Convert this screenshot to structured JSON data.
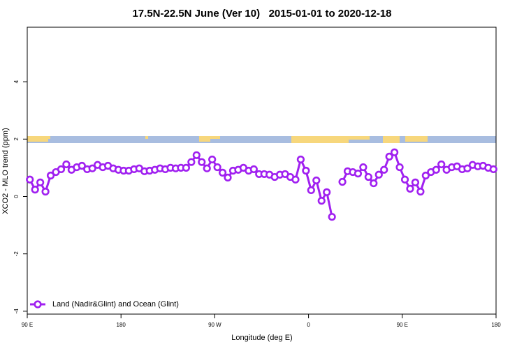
{
  "chart_data": {
    "type": "line",
    "title": "17.5N-22.5N June (Ver 10)   2015-01-01 to 2020-12-18",
    "xlabel": "Longitude (deg E)",
    "ylabel": "XCO2 - MLO trend (ppm)",
    "xlim": [
      90,
      540
    ],
    "ylim": [
      -4.1,
      5.9
    ],
    "xticks": [
      {
        "value": 90,
        "label": "90 E"
      },
      180,
      {
        "value": 270,
        "label": "90 W"
      },
      {
        "value": 360,
        "label": "0"
      },
      {
        "value": 450,
        "label": "90 E"
      },
      {
        "value": 540,
        "label": "180"
      }
    ],
    "yticks": [
      -4,
      -2,
      0,
      2,
      4
    ],
    "legend": "bottom-left",
    "x": [
      92.5,
      97.5,
      102.5,
      107.5,
      112.5,
      117.5,
      122.5,
      127.5,
      132.5,
      137.5,
      142.5,
      147.5,
      152.5,
      157.5,
      162.5,
      167.5,
      172.5,
      177.5,
      182.5,
      187.5,
      192.5,
      197.5,
      202.5,
      207.5,
      212.5,
      217.5,
      222.5,
      227.5,
      232.5,
      237.5,
      242.5,
      247.5,
      252.5,
      257.5,
      262.5,
      267.5,
      272.5,
      277.5,
      282.5,
      287.5,
      292.5,
      297.5,
      302.5,
      307.5,
      312.5,
      317.5,
      322.5,
      327.5,
      332.5,
      337.5,
      342.5,
      347.5,
      352.5,
      357.5,
      362.5,
      367.5,
      372.5,
      377.5,
      382.5,
      387.5,
      392.5,
      397.5,
      402.5,
      407.5,
      412.5,
      417.5,
      422.5,
      427.5,
      432.5,
      437.5,
      442.5,
      447.5,
      452.5,
      457.5,
      462.5,
      467.5,
      472.5,
      477.5,
      482.5,
      487.5,
      492.5,
      497.5,
      502.5,
      507.5,
      512.5,
      517.5,
      522.5,
      527.5,
      532.5,
      537.5
    ],
    "series": [
      {
        "name": "Land (Nadir&Glint) and Ocean (Glint)",
        "color": "#a020f0",
        "values": [
          0.59,
          0.24,
          0.49,
          0.17,
          0.73,
          0.85,
          0.95,
          1.12,
          0.93,
          1.02,
          1.07,
          0.95,
          0.98,
          1.1,
          1.02,
          1.07,
          0.98,
          0.93,
          0.9,
          0.9,
          0.95,
          0.98,
          0.88,
          0.9,
          0.93,
          0.98,
          0.95,
          1.0,
          0.98,
          1.0,
          1.0,
          1.2,
          1.44,
          1.2,
          0.98,
          1.29,
          1.02,
          0.83,
          0.66,
          0.9,
          0.93,
          1.0,
          0.9,
          0.95,
          0.78,
          0.78,
          0.76,
          0.68,
          0.76,
          0.78,
          0.68,
          0.59,
          1.29,
          0.9,
          0.22,
          0.56,
          -0.15,
          0.15,
          -0.71,
          null,
          0.51,
          0.88,
          0.85,
          0.8,
          1.02,
          0.68,
          0.46,
          0.76,
          0.93,
          1.39,
          1.54,
          1.02,
          0.59,
          0.27,
          0.49,
          0.17,
          0.73,
          0.85,
          0.93,
          1.12,
          0.93,
          1.02,
          1.05,
          0.95,
          0.98,
          1.1,
          1.05,
          1.07,
          1.0,
          0.95
        ]
      }
    ]
  }
}
